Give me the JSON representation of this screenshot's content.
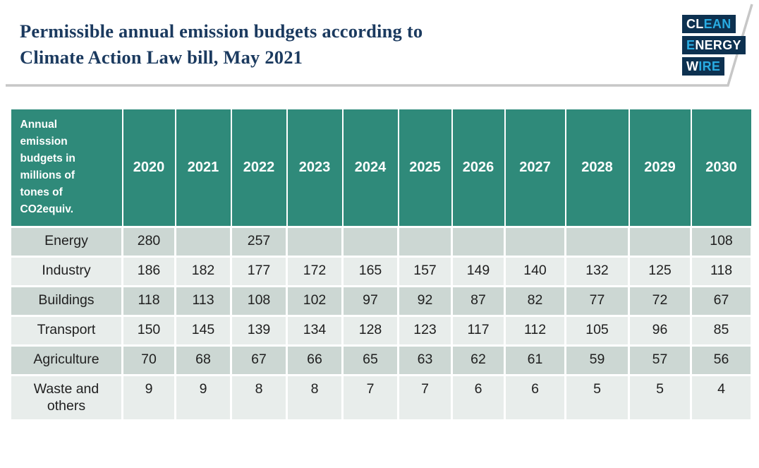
{
  "header": {
    "title": "Permissible annual emission budgets according to\nClimate Action Law bill, May 2021",
    "logo": {
      "lines": [
        {
          "name": "clean",
          "parts": [
            {
              "text": "CL",
              "color": "white"
            },
            {
              "text": "EAN",
              "color": "cyan"
            }
          ]
        },
        {
          "name": "energy",
          "parts": [
            {
              "text": "E",
              "color": "cyan"
            },
            {
              "text": "NERGY",
              "color": "white"
            }
          ]
        },
        {
          "name": "wire",
          "parts": [
            {
              "text": "W",
              "color": "white"
            },
            {
              "text": "IRE",
              "color": "cyan"
            }
          ]
        }
      ]
    }
  },
  "table": {
    "corner_label": "Annual\nemission\nbudgets in\nmillions of\ntones of\nCO2equiv."
  },
  "chart_data": {
    "type": "table",
    "title": "Permissible annual emission budgets according to Climate Action Law bill, May 2021",
    "unit": "millions of tones of CO2equiv.",
    "categories": [
      "2020",
      "2021",
      "2022",
      "2023",
      "2024",
      "2025",
      "2026",
      "2027",
      "2028",
      "2029",
      "2030"
    ],
    "series": [
      {
        "name": "Energy",
        "values": [
          280,
          null,
          257,
          null,
          null,
          null,
          null,
          null,
          null,
          null,
          108
        ]
      },
      {
        "name": "Industry",
        "values": [
          186,
          182,
          177,
          172,
          165,
          157,
          149,
          140,
          132,
          125,
          118
        ]
      },
      {
        "name": "Buildings",
        "values": [
          118,
          113,
          108,
          102,
          97,
          92,
          87,
          82,
          77,
          72,
          67
        ]
      },
      {
        "name": "Transport",
        "values": [
          150,
          145,
          139,
          134,
          128,
          123,
          117,
          112,
          105,
          96,
          85
        ]
      },
      {
        "name": "Agriculture",
        "values": [
          70,
          68,
          67,
          66,
          65,
          63,
          62,
          61,
          59,
          57,
          56
        ]
      },
      {
        "name": "Waste and others",
        "values": [
          9,
          9,
          8,
          8,
          7,
          7,
          6,
          6,
          5,
          5,
          4
        ]
      }
    ]
  },
  "colors": {
    "teal_header": "#2f8a7a",
    "row_dark": "#ccd7d3",
    "row_light": "#e8edeb",
    "title_navy": "#1b3a5f",
    "logo_navy": "#0d3150",
    "logo_cyan": "#29abe2",
    "logo_white": "#ffffff",
    "divider_gray": "#c7c7c7"
  }
}
